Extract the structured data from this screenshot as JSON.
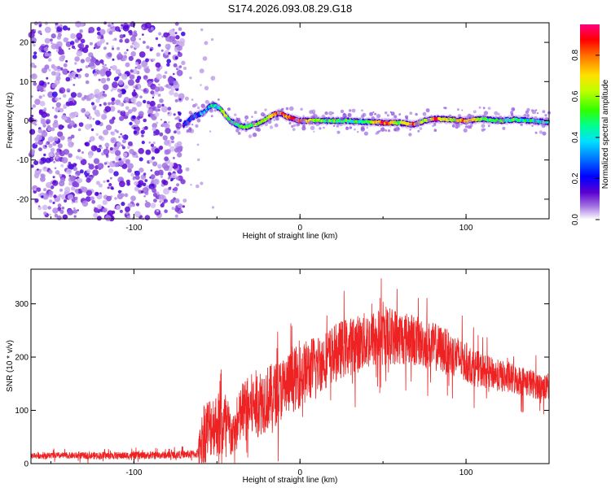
{
  "title": "S174.2026.093.08.29.G18",
  "chart_data": [
    {
      "type": "heatmap",
      "name": "spectrogram",
      "xlabel": "Height of straight line (km)",
      "ylabel": "Frequency (Hz)",
      "xlim": [
        -162,
        150
      ],
      "ylim": [
        -25,
        25
      ],
      "xticks": [
        -100,
        0,
        100
      ],
      "yticks": [
        -20,
        -10,
        0,
        10,
        20
      ],
      "noise_region_x": [
        -162,
        -70
      ],
      "ridge": {
        "x": [
          -70,
          -66,
          -62,
          -58,
          -55,
          -52,
          -48,
          -45,
          -42,
          -38,
          -35,
          -32,
          -28,
          -24,
          -20,
          -16,
          -12,
          -8,
          -4,
          0,
          10,
          20,
          30,
          40,
          50,
          60,
          68,
          75,
          82,
          90,
          100,
          110,
          120,
          130,
          140,
          148
        ],
        "freq": [
          -1,
          0.5,
          1.5,
          2,
          3.5,
          4,
          3,
          1.5,
          0,
          -1,
          -1.5,
          -1.5,
          -1,
          -0.5,
          0.5,
          1.5,
          2,
          1,
          0.5,
          0,
          0,
          0,
          0,
          -0.3,
          -0.5,
          -0.5,
          -1,
          0,
          0.5,
          0.3,
          0,
          0.5,
          0,
          0.3,
          0,
          -0.3
        ],
        "amp": [
          0.15,
          0.2,
          0.3,
          0.35,
          0.4,
          0.45,
          0.5,
          0.55,
          0.5,
          0.5,
          0.55,
          0.55,
          0.6,
          0.65,
          0.7,
          0.8,
          0.85,
          0.8,
          0.85,
          0.85,
          0.6,
          0.55,
          0.5,
          0.5,
          0.9,
          0.6,
          0.85,
          0.6,
          0.9,
          0.6,
          0.85,
          0.6,
          0.55,
          0.5,
          0.45,
          0.4
        ]
      },
      "colorbar": {
        "label": "Normalized spectral amplitude",
        "ticks": [
          "0.0",
          "0.2",
          "0.4",
          "0.6",
          "0.8"
        ],
        "range": [
          0,
          0.95
        ]
      }
    },
    {
      "type": "line",
      "name": "snr",
      "xlabel": "Height of straight line (km)",
      "ylabel": "SNR (10 * v/v)",
      "xlim": [
        -162,
        150
      ],
      "ylim": [
        0,
        365
      ],
      "xticks": [
        -100,
        0,
        100
      ],
      "yticks": [
        0,
        100,
        200,
        300
      ],
      "color": "#ee2222",
      "envelope": {
        "x": [
          -162,
          -140,
          -120,
          -100,
          -80,
          -62,
          -58,
          -52,
          -45,
          -40,
          -35,
          -25,
          -15,
          -5,
          5,
          15,
          25,
          35,
          45,
          55,
          65,
          75,
          85,
          95,
          105,
          115,
          125,
          135,
          150
        ],
        "baseline": [
          15,
          15,
          15,
          15,
          16,
          18,
          60,
          75,
          70,
          50,
          95,
          115,
          130,
          155,
          175,
          195,
          215,
          225,
          235,
          240,
          235,
          225,
          215,
          200,
          180,
          170,
          160,
          155,
          140
        ],
        "spread": [
          6,
          6,
          7,
          7,
          7,
          8,
          60,
          60,
          70,
          40,
          60,
          65,
          60,
          60,
          60,
          55,
          55,
          55,
          55,
          55,
          50,
          45,
          45,
          40,
          35,
          30,
          30,
          28,
          25
        ]
      }
    }
  ]
}
